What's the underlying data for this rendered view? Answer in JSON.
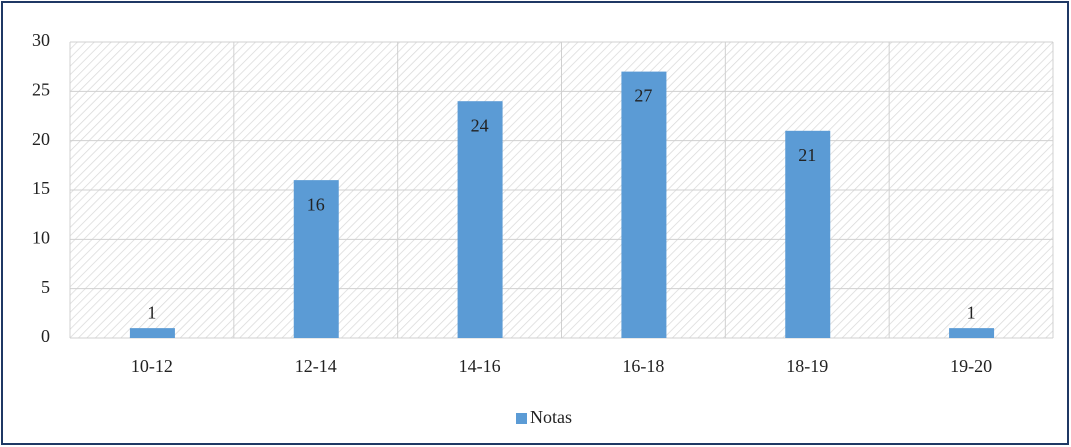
{
  "chart_data": {
    "type": "bar",
    "categories": [
      "10-12",
      "12-14",
      "14-16",
      "16-18",
      "18-19",
      "19-20"
    ],
    "series": [
      {
        "name": "Notas",
        "color": "#5b9bd5",
        "values": [
          1,
          16,
          24,
          27,
          21,
          1
        ]
      }
    ],
    "ylim": [
      0,
      30
    ],
    "yticks": [
      0,
      5,
      10,
      15,
      20,
      25,
      30
    ],
    "grid": true,
    "legend": "bottom"
  }
}
